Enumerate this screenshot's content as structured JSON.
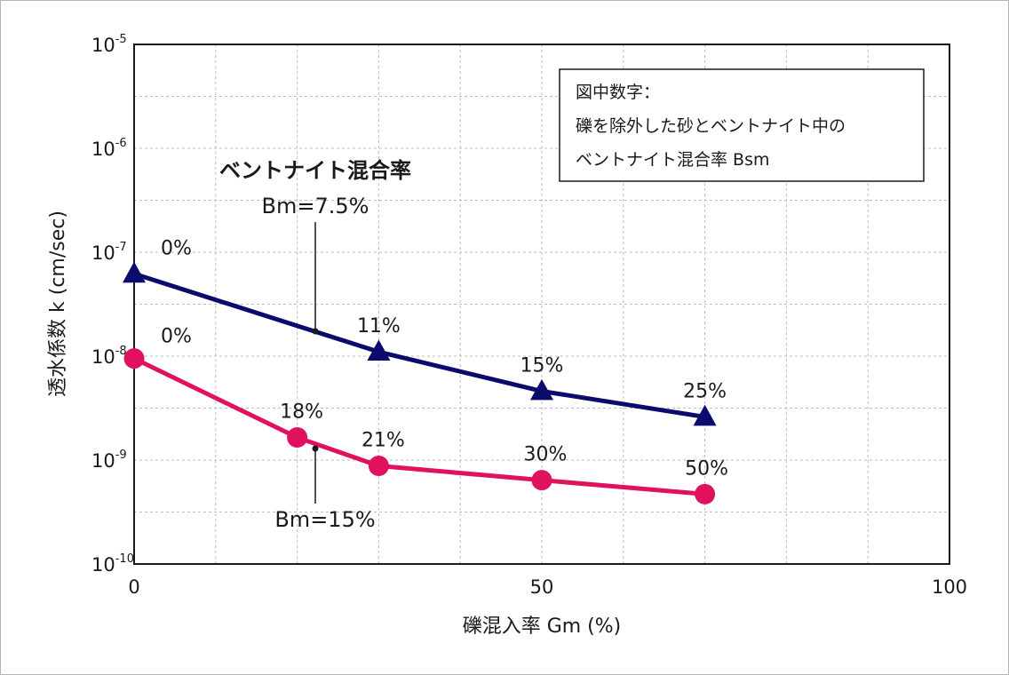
{
  "chart_data": {
    "type": "line",
    "xlabel": "礫混入率 Gm (%)",
    "ylabel": "透水係数 k (cm/sec)",
    "xlim": [
      0,
      100
    ],
    "ylim": [
      1e-10,
      1e-05
    ],
    "y_scale": "log",
    "grid": true,
    "x_ticks": [
      "0",
      "50",
      "100"
    ],
    "y_ticks": [
      {
        "base": "10",
        "exp": "-5",
        "value": 1e-05
      },
      {
        "base": "10",
        "exp": "-6",
        "value": 1e-06
      },
      {
        "base": "10",
        "exp": "-7",
        "value": 1e-07
      },
      {
        "base": "10",
        "exp": "-8",
        "value": 1e-08
      },
      {
        "base": "10",
        "exp": "-9",
        "value": 1e-09
      },
      {
        "base": "10",
        "exp": "-10",
        "value": 1e-10
      }
    ],
    "series": [
      {
        "color": "#0b0b6e",
        "marker": "triangle",
        "x": [
          0,
          30,
          50,
          70
        ],
        "y": [
          6.2e-08,
          1.1e-08,
          4.6e-09,
          2.6e-09
        ],
        "labels": [
          "0%",
          "11%",
          "15%",
          "25%"
        ]
      },
      {
        "color": "#e0115f",
        "marker": "circle",
        "x": [
          0,
          20,
          30,
          50,
          70
        ],
        "y": [
          9.5e-09,
          1.65e-09,
          8.8e-10,
          6.4e-10,
          4.7e-10
        ],
        "labels": [
          "0%",
          "18%",
          "21%",
          "30%",
          "50%"
        ]
      }
    ],
    "annotations": {
      "title": "ベントナイト混合率",
      "bm_75": "Bm=7.5%",
      "bm_15": "Bm=15%"
    },
    "note": {
      "line1": "図中数字：",
      "line2": "礫を除外した砂とベントナイト中の",
      "line3": "ベントナイト混合率 Bsm"
    }
  }
}
